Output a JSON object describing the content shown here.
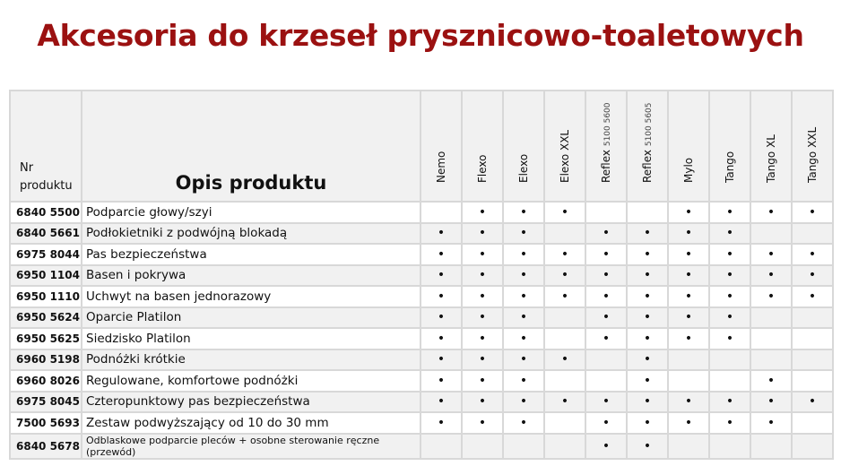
{
  "title": "Akcesoria do krzeseł prysznicowo-toaletowych",
  "header": {
    "nr_line1": "Nr",
    "nr_line2": "produktu",
    "opis": "Opis produktu",
    "models": [
      {
        "name": "Nemo",
        "sub": ""
      },
      {
        "name": "Flexo",
        "sub": ""
      },
      {
        "name": "Elexo",
        "sub": ""
      },
      {
        "name": "Elexo XXL",
        "sub": ""
      },
      {
        "name": "Reflex",
        "sub": "5100 5600"
      },
      {
        "name": "Reflex",
        "sub": "5100 5605"
      },
      {
        "name": "Mylo",
        "sub": ""
      },
      {
        "name": "Tango",
        "sub": ""
      },
      {
        "name": "Tango XL",
        "sub": ""
      },
      {
        "name": "Tango XXL",
        "sub": ""
      }
    ]
  },
  "dot_symbol": "•",
  "rows": [
    {
      "code": "6840 5500",
      "desc": "Podparcie głowy/szyi",
      "marks": [
        0,
        1,
        1,
        1,
        0,
        0,
        1,
        1,
        1,
        1
      ]
    },
    {
      "code": "6840 5661",
      "desc": "Podłokietniki z podwójną blokadą",
      "marks": [
        1,
        1,
        1,
        0,
        1,
        1,
        1,
        1,
        0,
        0
      ]
    },
    {
      "code": "6975 8044",
      "desc": "Pas bezpieczeństwa",
      "marks": [
        1,
        1,
        1,
        1,
        1,
        1,
        1,
        1,
        1,
        1
      ]
    },
    {
      "code": "6950 1104",
      "desc": "Basen i pokrywa",
      "marks": [
        1,
        1,
        1,
        1,
        1,
        1,
        1,
        1,
        1,
        1
      ]
    },
    {
      "code": "6950 1110",
      "desc": "Uchwyt na basen jednorazowy",
      "marks": [
        1,
        1,
        1,
        1,
        1,
        1,
        1,
        1,
        1,
        1
      ]
    },
    {
      "code": "6950 5624",
      "desc": "Oparcie Platilon",
      "marks": [
        1,
        1,
        1,
        0,
        1,
        1,
        1,
        1,
        0,
        0
      ]
    },
    {
      "code": "6950 5625",
      "desc": "Siedzisko Platilon",
      "marks": [
        1,
        1,
        1,
        0,
        1,
        1,
        1,
        1,
        0,
        0
      ]
    },
    {
      "code": "6960 5198",
      "desc": "Podnóżki krótkie",
      "marks": [
        1,
        1,
        1,
        1,
        0,
        1,
        0,
        0,
        0,
        0
      ]
    },
    {
      "code": "6960 8026",
      "desc": "Regulowane, komfortowe podnóżki",
      "marks": [
        1,
        1,
        1,
        0,
        0,
        1,
        0,
        0,
        1,
        0
      ]
    },
    {
      "code": "6975 8045",
      "desc": "Czteropunktowy pas bezpieczeństwa",
      "marks": [
        1,
        1,
        1,
        1,
        1,
        1,
        1,
        1,
        1,
        1
      ]
    },
    {
      "code": "7500 5693",
      "desc": "Zestaw podwyższający od 10 do 30 mm",
      "marks": [
        1,
        1,
        1,
        0,
        1,
        1,
        1,
        1,
        1,
        0
      ]
    },
    {
      "code": "6840 5678",
      "desc": "Odblaskowe podparcie pleców + osobne sterowanie ręczne (przewód)",
      "marks": [
        0,
        0,
        0,
        0,
        1,
        1,
        0,
        0,
        0,
        0
      ]
    }
  ]
}
